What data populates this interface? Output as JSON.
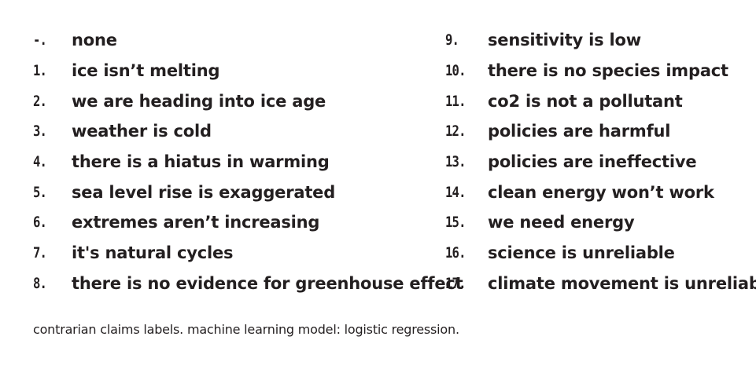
{
  "claims_left": [
    {
      "number": "-.",
      "label": "none"
    },
    {
      "number": "1.",
      "label": "ice isn’t melting"
    },
    {
      "number": "2.",
      "label": "we are heading into ice age"
    },
    {
      "number": "3.",
      "label": "weather is cold"
    },
    {
      "number": "4.",
      "label": "there is a hiatus in warming"
    },
    {
      "number": "5.",
      "label": "sea level rise is exaggerated"
    },
    {
      "number": "6.",
      "label": "extremes aren’t increasing"
    },
    {
      "number": "7.",
      "label": "it's natural cycles"
    },
    {
      "number": "8.",
      "label": "there is no evidence for greenhouse effect"
    }
  ],
  "claims_right": [
    {
      "number": "9.",
      "label": "sensitivity is low"
    },
    {
      "number": "10.",
      "label": "there is no species impact"
    },
    {
      "number": "11.",
      "label": "co2 is not a pollutant"
    },
    {
      "number": "12.",
      "label": "policies are harmful"
    },
    {
      "number": "13.",
      "label": "policies are ineffective"
    },
    {
      "number": "14.",
      "label": "clean energy won’t work"
    },
    {
      "number": "15.",
      "label": "we need energy"
    },
    {
      "number": "16.",
      "label": "science is unreliable"
    },
    {
      "number": "17.",
      "label": "climate movement is unreliable"
    }
  ],
  "caption": "contrarian claims labels. machine learning model: logistic regression."
}
